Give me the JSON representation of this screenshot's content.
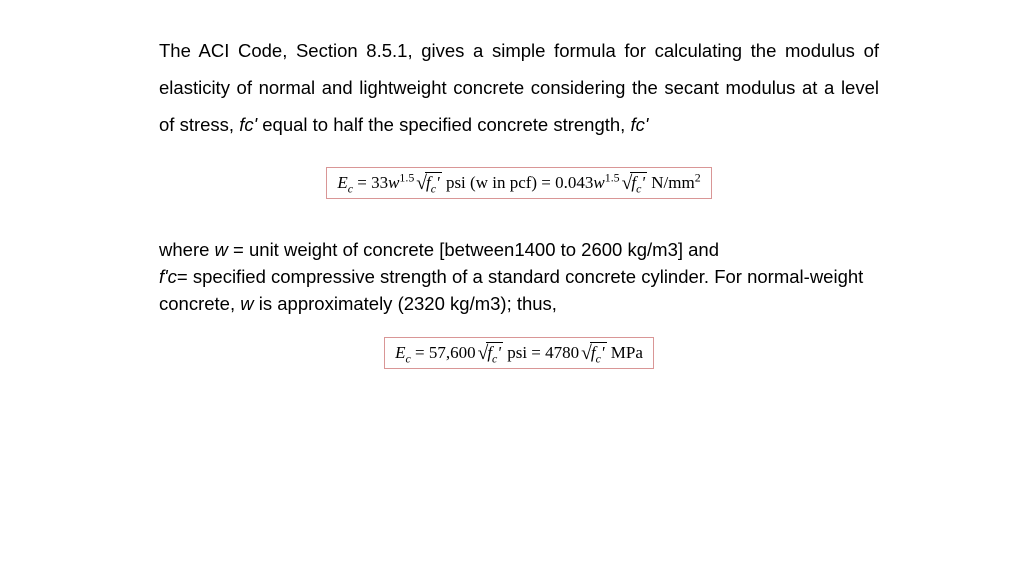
{
  "para1": {
    "t1": "The ACI Code, Section 8.5.1, gives a simple formula for calculating the modulus of elasticity of normal and lightweight concrete considering the secant modulus at a level of stress, ",
    "fc1": "fc'",
    "t2": " equal to half the specified concrete strength, ",
    "fc2": "fc'"
  },
  "formula1": {
    "Ec": "E",
    "Ec_sub": "c",
    "eq": " = 33",
    "w": "w",
    "exp": "1.5",
    "fc_prime": "f",
    "fc_sub": "c",
    "fc_tick": "'",
    "mid": " psi (w in pcf) = 0.043",
    "unit": " N/mm",
    "sq": "2",
    "box_border_color": "#d99696"
  },
  "para2": {
    "t1": "where ",
    "w": "w",
    "t2": " = unit weight of concrete [between1400 to 2600 kg/m3] and ",
    "fpc": "f'c",
    "t3": "= specified compressive strength of a standard concrete cylinder. ",
    "t4": "For normal‑weight concrete, ",
    "w2": "w",
    "t5": " is approximately (2320 kg/m3); thus,"
  },
  "formula2": {
    "Ec": "E",
    "Ec_sub": "c",
    "eq": " = 57,600",
    "fc_prime": "f",
    "fc_sub": "c",
    "fc_tick": "'",
    "mid": " psi = 4780",
    "unit": " MPa",
    "box_border_color": "#d99696"
  }
}
